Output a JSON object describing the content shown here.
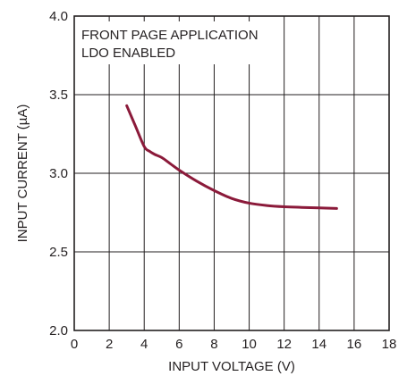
{
  "chart_data": {
    "type": "line",
    "xlabel": "INPUT VOLTAGE (V)",
    "ylabel": "INPUT CURRENT (µA)",
    "xlim": [
      0,
      18
    ],
    "ylim": [
      2.0,
      4.0
    ],
    "x_ticks": [
      "0",
      "2",
      "4",
      "6",
      "8",
      "10",
      "12",
      "14",
      "16",
      "18"
    ],
    "y_ticks": [
      "2.0",
      "2.5",
      "3.0",
      "3.5",
      "4.0"
    ],
    "grid": true,
    "annotations": [
      "FRONT PAGE APPLICATION",
      "LDO ENABLED"
    ],
    "series": [
      {
        "color": "#8b1a3a",
        "x": [
          3.0,
          3.5,
          4.0,
          4.3,
          4.6,
          5.0,
          5.5,
          6.0,
          7.0,
          8.0,
          9.0,
          10.0,
          11.0,
          12.0,
          13.0,
          14.0,
          15.0
        ],
        "y": [
          3.43,
          3.3,
          3.17,
          3.14,
          3.12,
          3.1,
          3.06,
          3.02,
          2.95,
          2.89,
          2.84,
          2.81,
          2.795,
          2.787,
          2.783,
          2.78,
          2.776
        ]
      }
    ]
  }
}
